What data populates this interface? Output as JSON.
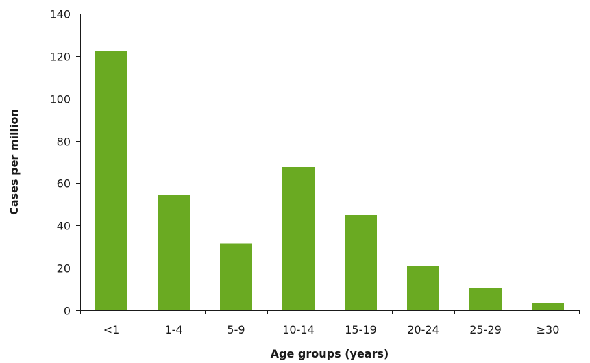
{
  "chart_data": {
    "type": "bar",
    "title": "",
    "xlabel": "Age groups (years)",
    "ylabel": "Cases per million",
    "categories": [
      "<1",
      "1-4",
      "5-9",
      "10-14",
      "15-19",
      "20-24",
      "25-29",
      "≥30"
    ],
    "values": [
      122.5,
      54.5,
      31.5,
      67.5,
      45,
      20.8,
      10.6,
      3.5
    ],
    "ylim": [
      0,
      140
    ],
    "yticks": [
      0,
      20,
      40,
      60,
      80,
      100,
      120,
      140
    ],
    "grid": false,
    "legend": "none",
    "bar_color": "#6aaa22"
  }
}
